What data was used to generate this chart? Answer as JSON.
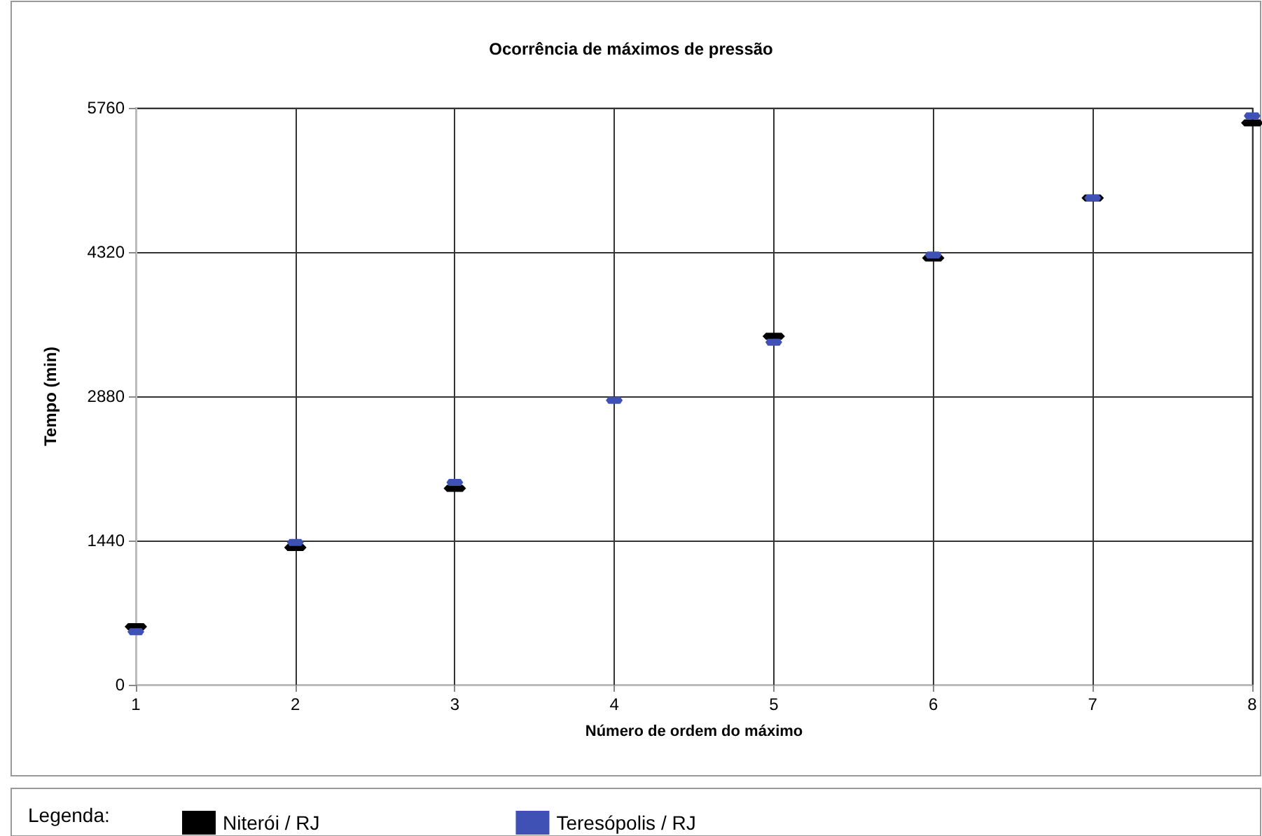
{
  "chart_data": {
    "type": "scatter",
    "title": "Ocorrência de máximos de pressão",
    "xlabel": "Número de ordem do máximo",
    "ylabel": "Tempo (min)",
    "legend_title": "Legenda:",
    "x": [
      1,
      2,
      3,
      4,
      5,
      6,
      7,
      8
    ],
    "series": [
      {
        "name": "Niterói / RJ",
        "color": "#000000",
        "values": [
          580,
          1370,
          1960,
          null,
          3480,
          4260,
          4860,
          5610
        ]
      },
      {
        "name": "Teresópolis / RJ",
        "color": "#3f51b5",
        "values": [
          530,
          1420,
          2020,
          2840,
          3420,
          4290,
          4860,
          5680
        ]
      }
    ],
    "xlim": [
      1,
      8
    ],
    "xticks": [
      1,
      2,
      3,
      4,
      5,
      6,
      7,
      8
    ],
    "ylim": [
      0,
      5760
    ],
    "yticks": [
      0,
      1440,
      2880,
      4320,
      5760
    ],
    "grid": true,
    "legend": "bottom"
  }
}
